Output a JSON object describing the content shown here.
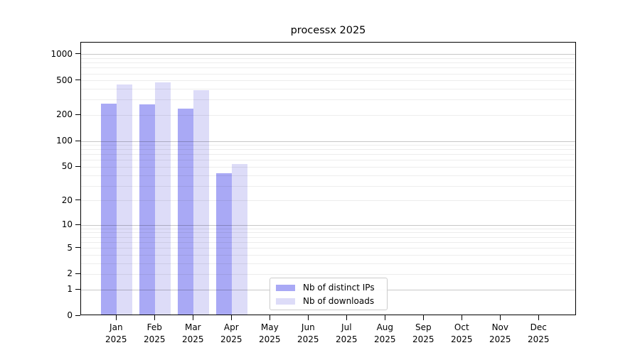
{
  "chart_data": {
    "type": "bar",
    "title": "processx 2025",
    "categories": [
      "Jan 2025",
      "Feb 2025",
      "Mar 2025",
      "Apr 2025",
      "May 2025",
      "Jun 2025",
      "Jul 2025",
      "Aug 2025",
      "Sep 2025",
      "Oct 2025",
      "Nov 2025",
      "Dec 2025"
    ],
    "series": [
      {
        "name": "Nb of distinct IPs",
        "color": "#a9a9f5",
        "values": [
          260,
          255,
          232,
          41,
          null,
          null,
          null,
          null,
          null,
          null,
          null,
          null
        ]
      },
      {
        "name": "Nb of downloads",
        "color": "#dddcf8",
        "values": [
          440,
          465,
          375,
          52,
          null,
          null,
          null,
          null,
          null,
          null,
          null,
          null
        ]
      }
    ],
    "xlabel": "",
    "ylabel": "",
    "y_axis": {
      "scale": "log1p",
      "ticks": [
        0,
        1,
        2,
        5,
        10,
        20,
        50,
        100,
        200,
        500,
        1000
      ],
      "axis_max": 1370,
      "major_gridlines": [
        1,
        10,
        100,
        1000
      ],
      "minor_gridlines": [
        2,
        3,
        4,
        5,
        6,
        7,
        8,
        9,
        20,
        30,
        40,
        50,
        60,
        70,
        80,
        90,
        200,
        300,
        400,
        500,
        600,
        700,
        800,
        900
      ]
    },
    "grid": "horizontal",
    "legend": {
      "position": "lower center",
      "entries": [
        "Nb of distinct IPs",
        "Nb of downloads"
      ]
    }
  },
  "colors": {
    "major_grid": "#c7c7c7",
    "minor_grid": "#ededed",
    "spine": "#000000",
    "text": "#000000"
  }
}
